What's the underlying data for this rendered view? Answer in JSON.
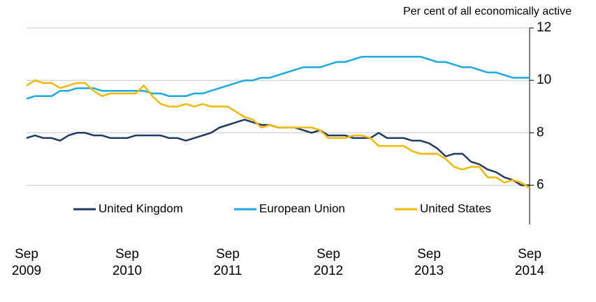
{
  "chart_data": {
    "type": "line",
    "axis_label": "Per cent of all economically active",
    "categories": [
      "Sep 2009",
      null,
      null,
      null,
      null,
      null,
      null,
      null,
      null,
      null,
      null,
      null,
      "Sep 2010",
      null,
      null,
      null,
      null,
      null,
      null,
      null,
      null,
      null,
      null,
      null,
      "Sep 2011",
      null,
      null,
      null,
      null,
      null,
      null,
      null,
      null,
      null,
      null,
      null,
      "Sep 2012",
      null,
      null,
      null,
      null,
      null,
      null,
      null,
      null,
      null,
      null,
      null,
      "Sep 2013",
      null,
      null,
      null,
      null,
      null,
      null,
      null,
      null,
      null,
      null,
      null,
      "Sep 2014"
    ],
    "series": [
      {
        "name": "United Kingdom",
        "color": "#1f3864",
        "values": [
          7.8,
          7.9,
          7.8,
          7.8,
          7.7,
          7.9,
          8.0,
          8.0,
          7.9,
          7.9,
          7.8,
          7.8,
          7.8,
          7.9,
          7.9,
          7.9,
          7.9,
          7.8,
          7.8,
          7.7,
          7.8,
          7.9,
          8.0,
          8.2,
          8.3,
          8.4,
          8.5,
          8.4,
          8.3,
          8.3,
          8.2,
          8.2,
          8.2,
          8.1,
          8.0,
          8.1,
          7.9,
          7.9,
          7.9,
          7.8,
          7.8,
          7.8,
          8.0,
          7.8,
          7.8,
          7.8,
          7.7,
          7.7,
          7.6,
          7.4,
          7.1,
          7.2,
          7.2,
          6.9,
          6.8,
          6.6,
          6.5,
          6.3,
          6.2,
          6.0,
          6.0
        ]
      },
      {
        "name": "European Union",
        "color": "#1ba9e1",
        "values": [
          9.3,
          9.4,
          9.4,
          9.4,
          9.6,
          9.6,
          9.7,
          9.7,
          9.7,
          9.6,
          9.6,
          9.6,
          9.6,
          9.6,
          9.6,
          9.5,
          9.5,
          9.4,
          9.4,
          9.4,
          9.5,
          9.5,
          9.6,
          9.7,
          9.8,
          9.9,
          10.0,
          10.0,
          10.1,
          10.1,
          10.2,
          10.3,
          10.4,
          10.5,
          10.5,
          10.5,
          10.6,
          10.7,
          10.7,
          10.8,
          10.9,
          10.9,
          10.9,
          10.9,
          10.9,
          10.9,
          10.9,
          10.9,
          10.8,
          10.7,
          10.7,
          10.6,
          10.5,
          10.5,
          10.4,
          10.3,
          10.3,
          10.2,
          10.1,
          10.1,
          10.1
        ]
      },
      {
        "name": "United States",
        "color": "#f5b800",
        "values": [
          9.8,
          10.0,
          9.9,
          9.9,
          9.7,
          9.8,
          9.9,
          9.9,
          9.6,
          9.4,
          9.5,
          9.5,
          9.5,
          9.5,
          9.8,
          9.4,
          9.1,
          9.0,
          9.0,
          9.1,
          9.0,
          9.1,
          9.0,
          9.0,
          9.0,
          8.8,
          8.6,
          8.5,
          8.2,
          8.3,
          8.2,
          8.2,
          8.2,
          8.2,
          8.2,
          8.1,
          7.8,
          7.8,
          7.8,
          7.9,
          7.9,
          7.8,
          7.5,
          7.5,
          7.5,
          7.5,
          7.3,
          7.2,
          7.2,
          7.2,
          7.0,
          6.7,
          6.6,
          6.7,
          6.7,
          6.3,
          6.3,
          6.1,
          6.2,
          6.1,
          5.9
        ]
      }
    ],
    "ylim": [
      4.5,
      12
    ],
    "yticks": [
      6,
      8,
      10,
      12
    ],
    "grid": true,
    "y_axis_side": "right"
  }
}
